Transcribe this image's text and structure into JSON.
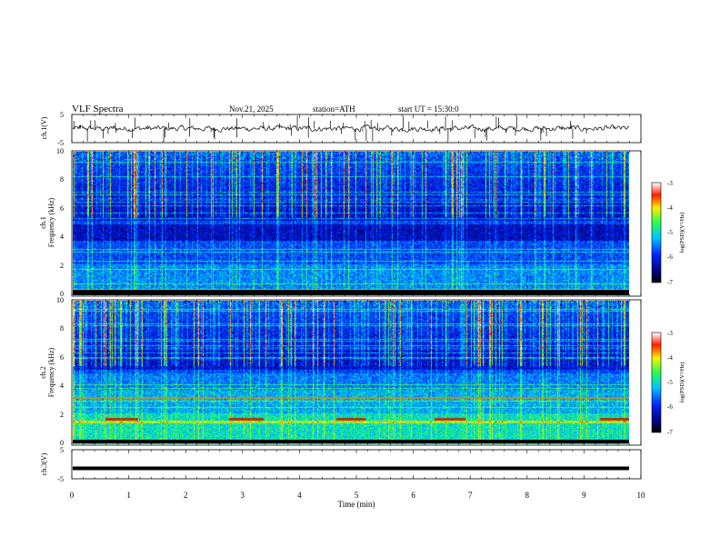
{
  "header": {
    "title": "VLF  Spectra",
    "date": "Nov.21, 2025",
    "station": "station=ATH",
    "start_ut": "start  UT  =   15:30:0"
  },
  "chart_data": [
    {
      "type": "line",
      "name": "ch1-waveform",
      "ylabel": "ch.1(V)",
      "ylim": [
        -5,
        5
      ],
      "yticks": [
        "5",
        "-5"
      ],
      "xlim": [
        0,
        10
      ],
      "color": "#000000"
    },
    {
      "type": "heatmap",
      "name": "ch1-spectrogram",
      "ylabel": "ch.1\nFrequency  (kHz)",
      "ylim": [
        0,
        10
      ],
      "yticks": [
        "0",
        "2",
        "4",
        "6",
        "8",
        "10"
      ],
      "xlim": [
        0,
        9.8
      ],
      "colorbar": {
        "label": "log(PSD)(V²/Hz)",
        "range": [
          -7,
          -3
        ],
        "ticks": [
          "-3",
          "-4",
          "-5",
          "-6",
          "-7"
        ]
      }
    },
    {
      "type": "heatmap",
      "name": "ch2-spectrogram",
      "ylabel": "ch.2\nFrequency  (kHz)",
      "ylim": [
        0,
        10
      ],
      "yticks": [
        "0",
        "2",
        "4",
        "6",
        "8",
        "10"
      ],
      "xlim": [
        0,
        9.8
      ],
      "colorbar": {
        "label": "log(PSD)(V²/Hz)",
        "range": [
          -7,
          -3
        ],
        "ticks": [
          "-3",
          "-4",
          "-5",
          "-6",
          "-7"
        ]
      }
    },
    {
      "type": "line",
      "name": "ch3-waveform",
      "ylabel": "ch.3(V)",
      "ylim": [
        -5,
        5
      ],
      "yticks": [
        "5",
        "-5"
      ],
      "xlim": [
        0,
        10
      ],
      "value_level": -1.5,
      "color": "#000000"
    }
  ],
  "xaxis": {
    "label": "Time  (min)",
    "range": [
      0,
      10
    ],
    "ticks": [
      "0",
      "1",
      "2",
      "3",
      "4",
      "5",
      "6",
      "7",
      "8",
      "9",
      "10"
    ]
  }
}
